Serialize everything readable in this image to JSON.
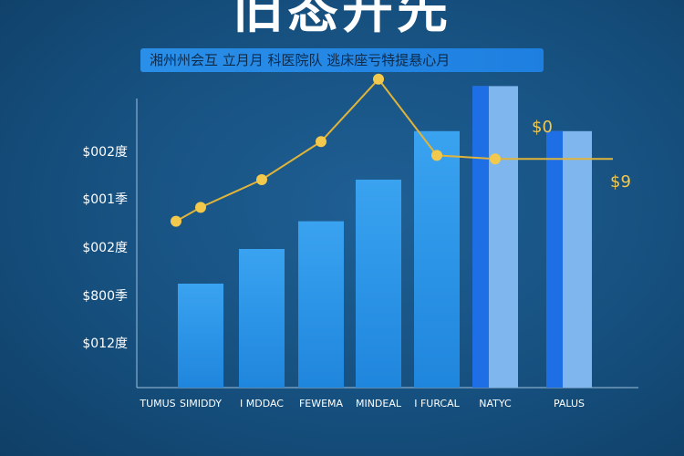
{
  "title": "旧态开先",
  "subtitle": "湘州州会互 立月月 科医院队 逃床座亏特提悬心月",
  "colors": {
    "bar_top": "#3aa3f0",
    "bar_bottom": "#1f86dd",
    "bar_accent": "#1e6fe6",
    "bar_light": "#7fb6ee",
    "line": "#e0b43a",
    "marker": "#f2c94c",
    "axis": "#9fc0dc"
  },
  "chart_data": {
    "type": "bar",
    "title": "旧态开先",
    "subtitle": "湘州州会互 立月月 科医院队 逃床座亏特提悬心月",
    "categories": [
      "TUMUS",
      "SIMIDDY",
      "I MDDAC",
      "FEWEMA",
      "MINDEAL",
      "I FURCAL",
      "NATYC",
      "PALUS"
    ],
    "y_tick_labels": [
      "$002度",
      "$001季",
      "$002度",
      "$800季",
      "$012度"
    ],
    "bar_values": [
      null,
      30,
      40,
      48,
      60,
      74,
      87,
      74
    ],
    "line_values": [
      48,
      52,
      60,
      71,
      89,
      67,
      66
    ],
    "line_categories": [
      "TUMUS",
      "SIMIDDY",
      "I MDDAC",
      "FEWEMA",
      "MINDEAL",
      "I FURCAL",
      "NATYC"
    ],
    "data_labels": [
      {
        "category": "NATYC",
        "text": "$0"
      },
      {
        "category": "PALUS",
        "text": "$9"
      }
    ],
    "ylim": [
      0,
      100
    ],
    "grid": false,
    "legend": "none"
  }
}
